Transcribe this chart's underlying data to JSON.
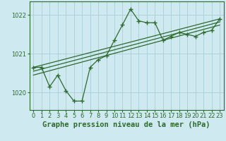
{
  "background_color": "#ceeaf0",
  "grid_color": "#aacdd6",
  "line_color": "#2d6a2d",
  "title": "Graphe pression niveau de la mer (hPa)",
  "xlim": [
    -0.5,
    23.5
  ],
  "ylim": [
    1019.55,
    1022.35
  ],
  "yticks": [
    1020,
    1021,
    1022
  ],
  "xticks": [
    0,
    1,
    2,
    3,
    4,
    5,
    6,
    7,
    8,
    9,
    10,
    11,
    12,
    13,
    14,
    15,
    16,
    17,
    18,
    19,
    20,
    21,
    22,
    23
  ],
  "series1_x": [
    0,
    1,
    2,
    3,
    4,
    5,
    6,
    7,
    8,
    9,
    10,
    11,
    12,
    13,
    14,
    15,
    16,
    17,
    18,
    19,
    20,
    21,
    22,
    23
  ],
  "series1_y": [
    1020.65,
    1020.65,
    1020.15,
    1020.45,
    1020.05,
    1019.78,
    1019.78,
    1020.65,
    1020.85,
    1020.95,
    1021.35,
    1021.75,
    1022.15,
    1021.85,
    1021.8,
    1021.8,
    1021.35,
    1021.45,
    1021.55,
    1021.5,
    1021.45,
    1021.55,
    1021.6,
    1021.9
  ],
  "trend1_x": [
    0,
    23
  ],
  "trend1_y": [
    1020.65,
    1021.9
  ],
  "trend2_x": [
    0,
    23
  ],
  "trend2_y": [
    1020.55,
    1021.82
  ],
  "trend3_x": [
    0,
    23
  ],
  "trend3_y": [
    1020.45,
    1021.74
  ],
  "title_fontsize": 7.5,
  "tick_fontsize": 6
}
